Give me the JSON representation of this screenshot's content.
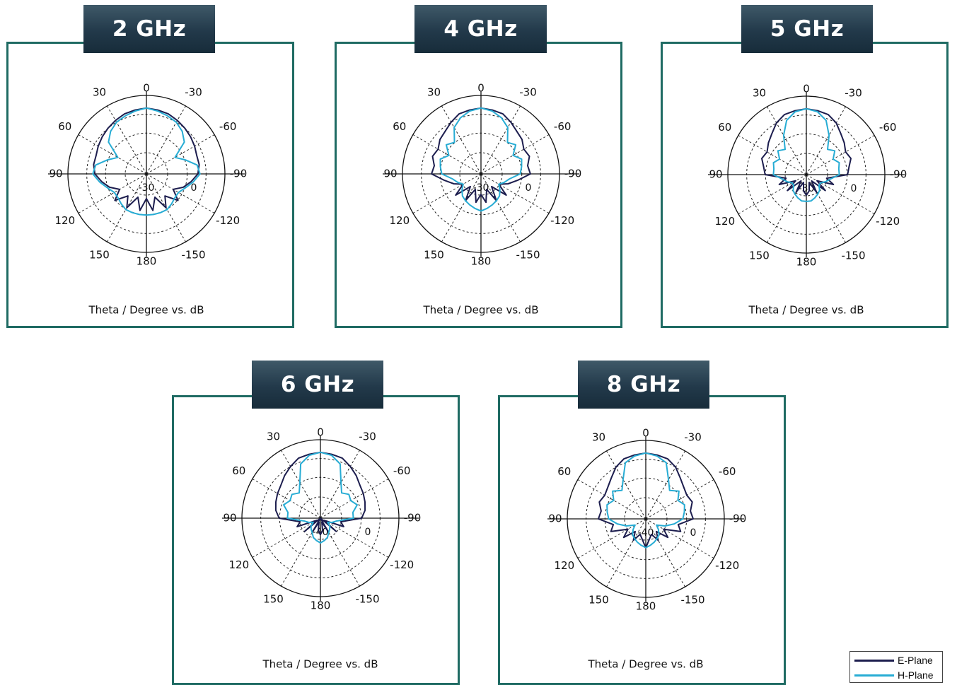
{
  "colors": {
    "e_plane": "#1c1d4e",
    "h_plane": "#27acd4",
    "frame": "#1f6b63"
  },
  "legend": {
    "e_label": "E-Plane",
    "h_label": "H-Plane"
  },
  "chart_data": [
    {
      "type": "polar",
      "title": "2 GHz",
      "xlabel": "Theta / Degree vs. dB",
      "angle_labels": [
        "0",
        "-30",
        "-60",
        "-90",
        "-120",
        "-150",
        "180",
        "150",
        "120",
        "90",
        "60",
        "30"
      ],
      "radial_labels": [
        "0",
        "-30"
      ],
      "series": [
        {
          "name": "E-Plane",
          "angles": [
            0,
            10,
            20,
            30,
            40,
            50,
            60,
            70,
            80,
            90,
            100,
            110,
            120,
            130,
            140,
            150,
            160,
            170,
            180,
            190,
            200,
            210,
            220,
            230,
            240,
            250,
            260,
            270,
            280,
            290,
            300,
            310,
            320,
            330,
            340,
            350
          ],
          "values": [
            0,
            -0.5,
            -1,
            -2,
            -3,
            -4,
            -5,
            -6,
            -6,
            -7,
            -10,
            -13,
            -17,
            -12,
            -18,
            -13,
            -20,
            -14,
            -20,
            -14,
            -20,
            -13,
            -18,
            -12,
            -17,
            -13,
            -10,
            -7,
            -6,
            -6,
            -5,
            -4,
            -3,
            -2,
            -1,
            -0.5
          ]
        },
        {
          "name": "H-Plane",
          "angles": [
            0,
            10,
            20,
            30,
            40,
            50,
            60,
            70,
            80,
            90,
            100,
            110,
            120,
            130,
            140,
            150,
            160,
            170,
            180,
            190,
            200,
            210,
            220,
            230,
            240,
            250,
            260,
            270,
            280,
            290,
            300,
            310,
            320,
            330,
            340,
            350
          ],
          "values": [
            0,
            -1,
            -2,
            -3,
            -5,
            -8,
            -16,
            -12,
            -7,
            -6,
            -9,
            -12,
            -14,
            -14,
            -13,
            -12,
            -12,
            -12,
            -12,
            -12,
            -12,
            -12,
            -13,
            -14,
            -14,
            -12,
            -9,
            -6,
            -7,
            -12,
            -16,
            -8,
            -5,
            -3,
            -2,
            -1
          ]
        }
      ]
    },
    {
      "type": "polar",
      "title": "4 GHz",
      "xlabel": "Theta / Degree vs. dB",
      "angle_labels": [
        "0",
        "-30",
        "-60",
        "-90",
        "-120",
        "-150",
        "180",
        "150",
        "120",
        "90",
        "60",
        "30"
      ],
      "radial_labels": [
        "0",
        "-30"
      ],
      "series": [
        {
          "name": "E-Plane",
          "angles": [
            0,
            10,
            20,
            30,
            40,
            50,
            60,
            70,
            80,
            90,
            100,
            110,
            120,
            130,
            140,
            150,
            160,
            170,
            180,
            190,
            200,
            210,
            220,
            230,
            240,
            250,
            260,
            270,
            280,
            290,
            300,
            310,
            320,
            330,
            340,
            350
          ],
          "values": [
            0,
            -0.5,
            -1,
            -3,
            -5,
            -6,
            -8,
            -7,
            -9,
            -8,
            -14,
            -18,
            -22,
            -16,
            -24,
            -17,
            -24,
            -18,
            -22,
            -18,
            -24,
            -17,
            -24,
            -16,
            -22,
            -18,
            -14,
            -8,
            -9,
            -7,
            -8,
            -6,
            -5,
            -3,
            -1,
            -0.5
          ]
        },
        {
          "name": "H-Plane",
          "angles": [
            0,
            10,
            20,
            30,
            40,
            50,
            60,
            70,
            80,
            90,
            100,
            110,
            120,
            130,
            140,
            150,
            160,
            170,
            180,
            190,
            200,
            210,
            220,
            230,
            240,
            250,
            260,
            270,
            280,
            290,
            300,
            310,
            320,
            330,
            340,
            350
          ],
          "values": [
            0,
            -1,
            -3,
            -6,
            -12,
            -10,
            -14,
            -11,
            -12,
            -13,
            -18,
            -20,
            -22,
            -20,
            -18,
            -17,
            -16,
            -15,
            -14,
            -15,
            -16,
            -17,
            -18,
            -20,
            -22,
            -20,
            -18,
            -13,
            -12,
            -11,
            -14,
            -10,
            -12,
            -6,
            -3,
            -1
          ]
        }
      ]
    },
    {
      "type": "polar",
      "title": "5 GHz",
      "xlabel": "Theta / Degree vs. dB",
      "angle_labels": [
        "0",
        "-30",
        "-60",
        "-90",
        "-120",
        "-150",
        "180",
        "150",
        "120",
        "90",
        "60",
        "30"
      ],
      "radial_labels": [
        "0",
        "-30"
      ],
      "series": [
        {
          "name": "E-Plane",
          "angles": [
            0,
            10,
            20,
            30,
            40,
            50,
            60,
            70,
            80,
            90,
            100,
            110,
            120,
            130,
            140,
            150,
            160,
            170,
            180,
            190,
            200,
            210,
            220,
            230,
            240,
            250,
            260,
            270,
            280,
            290,
            300,
            310,
            320,
            330,
            340,
            350
          ],
          "values": [
            0,
            -0.5,
            -1,
            -3,
            -6,
            -8,
            -10,
            -9,
            -11,
            -12,
            -22,
            -18,
            -26,
            -20,
            -28,
            -22,
            -28,
            -24,
            -22,
            -24,
            -28,
            -22,
            -28,
            -20,
            -26,
            -18,
            -22,
            -12,
            -11,
            -9,
            -10,
            -8,
            -6,
            -3,
            -1,
            -0.5
          ]
        },
        {
          "name": "H-Plane",
          "angles": [
            0,
            10,
            20,
            30,
            40,
            50,
            60,
            70,
            80,
            90,
            100,
            110,
            120,
            130,
            140,
            150,
            160,
            170,
            180,
            190,
            200,
            210,
            220,
            230,
            240,
            250,
            260,
            270,
            280,
            290,
            300,
            310,
            320,
            330,
            340,
            350
          ],
          "values": [
            0,
            -1,
            -4,
            -10,
            -16,
            -14,
            -17,
            -15,
            -16,
            -16,
            -20,
            -22,
            -24,
            -24,
            -22,
            -21,
            -20,
            -19,
            -19,
            -19,
            -20,
            -21,
            -22,
            -24,
            -24,
            -22,
            -20,
            -16,
            -16,
            -15,
            -17,
            -14,
            -16,
            -10,
            -4,
            -1
          ]
        }
      ]
    },
    {
      "type": "polar",
      "title": "6 GHz",
      "xlabel": "Theta / Degree vs. dB",
      "angle_labels": [
        "0",
        "-30",
        "-60",
        "-90",
        "-120",
        "-150",
        "180",
        "150",
        "120",
        "90",
        "60",
        "30"
      ],
      "radial_labels": [
        "0",
        "-40"
      ],
      "series": [
        {
          "name": "E-Plane",
          "angles": [
            0,
            10,
            20,
            30,
            40,
            50,
            60,
            70,
            80,
            90,
            100,
            110,
            120,
            130,
            140,
            150,
            160,
            170,
            180,
            190,
            200,
            210,
            220,
            230,
            240,
            250,
            260,
            270,
            280,
            290,
            300,
            310,
            320,
            330,
            340,
            350
          ],
          "values": [
            0,
            -0.5,
            -1,
            -3,
            -5,
            -7,
            -8,
            -9,
            -10,
            -12,
            -22,
            -20,
            -30,
            -22,
            -32,
            -24,
            -30,
            -26,
            -24,
            -26,
            -30,
            -24,
            -32,
            -22,
            -30,
            -20,
            -22,
            -12,
            -10,
            -9,
            -8,
            -7,
            -5,
            -3,
            -1,
            -0.5
          ]
        },
        {
          "name": "H-Plane",
          "angles": [
            0,
            10,
            20,
            30,
            40,
            50,
            60,
            70,
            80,
            90,
            100,
            110,
            120,
            130,
            140,
            150,
            160,
            170,
            180,
            190,
            200,
            210,
            220,
            230,
            240,
            250,
            260,
            270,
            280,
            290,
            300,
            310,
            320,
            330,
            340,
            350
          ],
          "values": [
            0,
            -1,
            -4,
            -12,
            -16,
            -14,
            -15,
            -13,
            -16,
            -16,
            -24,
            -26,
            -28,
            -26,
            -25,
            -24,
            -22,
            -21,
            -20,
            -21,
            -22,
            -24,
            -25,
            -26,
            -28,
            -26,
            -24,
            -16,
            -16,
            -13,
            -15,
            -14,
            -16,
            -12,
            -4,
            -1
          ]
        }
      ]
    },
    {
      "type": "polar",
      "title": "8 GHz",
      "xlabel": "Theta / Degree vs. dB",
      "angle_labels": [
        "0",
        "-30",
        "-60",
        "-90",
        "-120",
        "-150",
        "180",
        "150",
        "120",
        "90",
        "60",
        "30"
      ],
      "radial_labels": [
        "0",
        "-40"
      ],
      "series": [
        {
          "name": "E-Plane",
          "angles": [
            0,
            10,
            20,
            30,
            40,
            50,
            60,
            70,
            80,
            90,
            100,
            110,
            120,
            130,
            140,
            150,
            160,
            170,
            180,
            190,
            200,
            210,
            220,
            230,
            240,
            250,
            260,
            270,
            280,
            290,
            300,
            310,
            320,
            330,
            340,
            350
          ],
          "values": [
            0,
            -0.5,
            -1,
            -3,
            -6,
            -8,
            -9,
            -8,
            -10,
            -9,
            -16,
            -14,
            -22,
            -18,
            -24,
            -20,
            -24,
            -22,
            -18,
            -22,
            -24,
            -20,
            -24,
            -18,
            -22,
            -14,
            -16,
            -9,
            -10,
            -8,
            -9,
            -8,
            -6,
            -3,
            -1,
            -0.5
          ]
        },
        {
          "name": "H-Plane",
          "angles": [
            0,
            10,
            20,
            30,
            40,
            50,
            60,
            70,
            80,
            90,
            100,
            110,
            120,
            130,
            140,
            150,
            160,
            170,
            180,
            190,
            200,
            210,
            220,
            230,
            240,
            250,
            260,
            270,
            280,
            290,
            300,
            310,
            320,
            330,
            340,
            350
          ],
          "values": [
            0,
            -1,
            -3,
            -10,
            -14,
            -11,
            -14,
            -12,
            -13,
            -14,
            -18,
            -22,
            -26,
            -24,
            -22,
            -21,
            -20,
            -19,
            -18,
            -19,
            -20,
            -21,
            -22,
            -24,
            -26,
            -22,
            -18,
            -14,
            -13,
            -12,
            -14,
            -11,
            -14,
            -10,
            -3,
            -1
          ]
        }
      ]
    }
  ]
}
